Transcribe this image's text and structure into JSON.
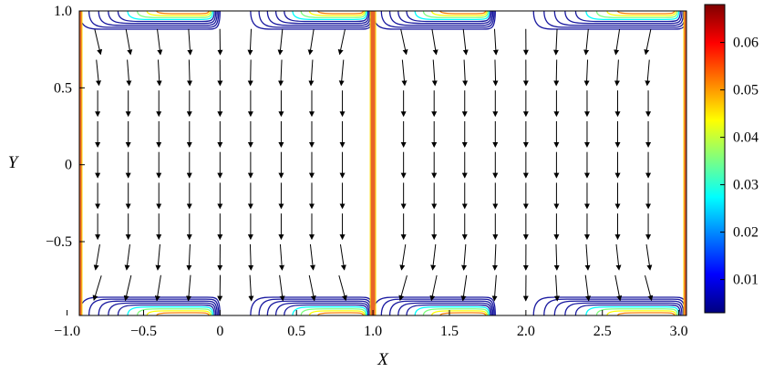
{
  "chart_data": {
    "type": "vector-field-contour",
    "xlabel": "X",
    "ylabel": "Y",
    "xlim": [
      -0.92,
      3.05
    ],
    "ylim": [
      -0.98,
      1.0
    ],
    "x_ticks": [
      {
        "value": -1.0,
        "label": "−1.0"
      },
      {
        "value": -0.5,
        "label": "−0.5"
      },
      {
        "value": 0,
        "label": "0"
      },
      {
        "value": 0.5,
        "label": "0.5"
      },
      {
        "value": 1.0,
        "label": "1.0"
      },
      {
        "value": 1.5,
        "label": "1.5"
      },
      {
        "value": 2.0,
        "label": "2.0"
      },
      {
        "value": 2.5,
        "label": "2.5"
      },
      {
        "value": 3.0,
        "label": "3.0"
      }
    ],
    "y_ticks": [
      {
        "value": 1.0,
        "label": "1.0"
      },
      {
        "value": 0.5,
        "label": "0.5"
      },
      {
        "value": 0,
        "label": "0"
      },
      {
        "value": -0.5,
        "label": "−0.5"
      }
    ],
    "colorbar": {
      "min": 0.003,
      "max": 0.068,
      "ticks": [
        {
          "value": 0.06,
          "label": "0.06"
        },
        {
          "value": 0.05,
          "label": "0.05"
        },
        {
          "value": 0.04,
          "label": "0.04"
        },
        {
          "value": 0.03,
          "label": "0.03"
        },
        {
          "value": 0.02,
          "label": "0.02"
        },
        {
          "value": 0.01,
          "label": "0.01"
        }
      ],
      "colormap": [
        "#00007f",
        "#0000ff",
        "#007fff",
        "#00ffff",
        "#7fff7f",
        "#ffff00",
        "#ff7f00",
        "#ff0000",
        "#7f0000"
      ]
    },
    "vertical_walls_x": [
      -0.92,
      1.0,
      3.05
    ],
    "wall_color": "#e8632a",
    "contour_color": "#1a1aa0",
    "arrow_grid_x": [
      -0.8,
      -0.6,
      -0.4,
      -0.2,
      0.0,
      0.2,
      0.4,
      0.6,
      0.8,
      1.2,
      1.4,
      1.6,
      1.8,
      2.0,
      2.2,
      2.4,
      2.6,
      2.8
    ],
    "arrow_grid_y": [
      0.8,
      0.6,
      0.4,
      0.2,
      0.0,
      -0.2,
      -0.4,
      -0.6,
      -0.8
    ]
  }
}
